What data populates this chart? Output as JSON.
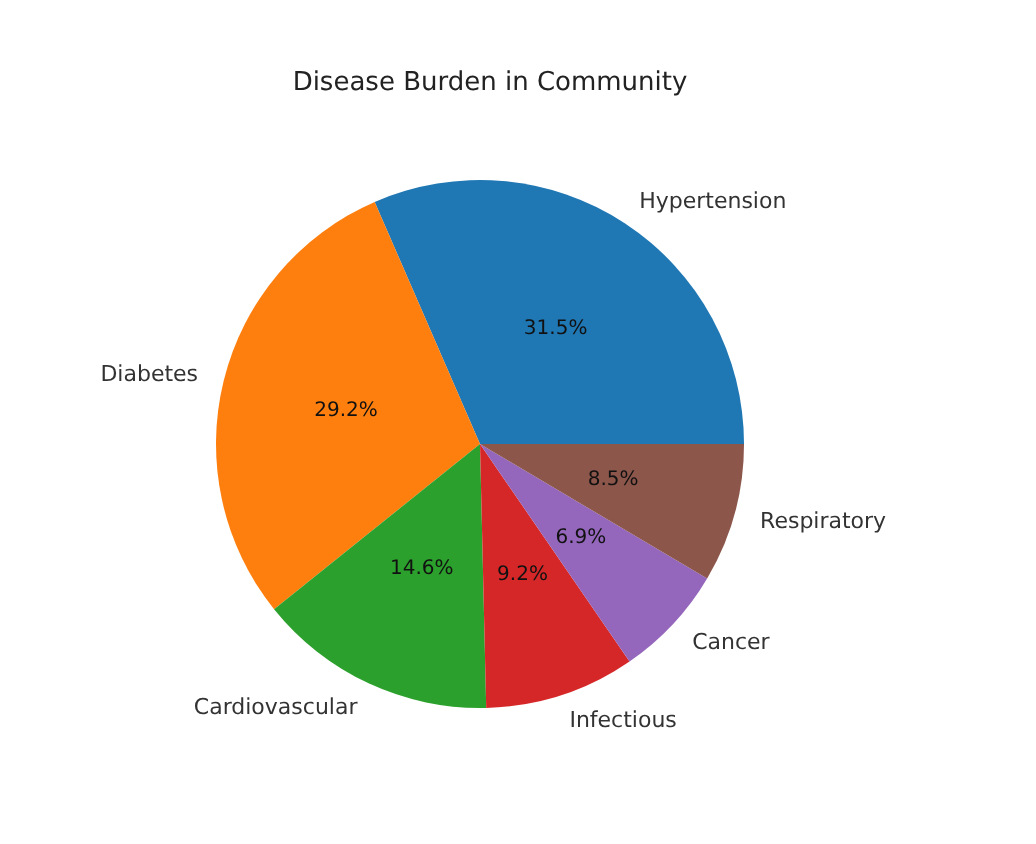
{
  "chart_data": {
    "type": "pie",
    "title": "Disease Burden in Community",
    "categories": [
      "Hypertension",
      "Diabetes",
      "Cardiovascular",
      "Infectious",
      "Cancer",
      "Respiratory"
    ],
    "values": [
      31.5,
      29.2,
      14.6,
      9.2,
      6.9,
      8.5
    ],
    "value_labels": [
      "31.5%",
      "29.2%",
      "14.6%",
      "9.2%",
      "6.9%",
      "8.5%"
    ],
    "colors": [
      "#1f77b4",
      "#ff7f0e",
      "#2ca02c",
      "#d62728",
      "#9467bd",
      "#8c564b"
    ],
    "legend": false
  }
}
